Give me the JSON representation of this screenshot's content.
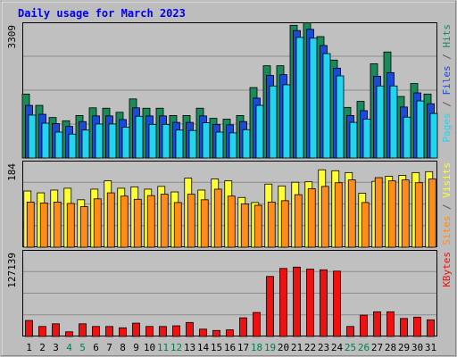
{
  "chart_data": {
    "type": "bar",
    "title": "Daily usage for March 2023",
    "categories": [
      "1",
      "2",
      "3",
      "4",
      "5",
      "6",
      "7",
      "8",
      "9",
      "10",
      "11",
      "12",
      "13",
      "14",
      "15",
      "16",
      "17",
      "18",
      "19",
      "20",
      "21",
      "22",
      "23",
      "24",
      "25",
      "26",
      "27",
      "28",
      "29",
      "30",
      "31"
    ],
    "weekend_days": [
      "4",
      "5",
      "11",
      "12",
      "18",
      "19",
      "25",
      "26"
    ],
    "panels": [
      {
        "id": "hits",
        "max_label": "3309",
        "ymax": 3309,
        "series": [
          {
            "name": "Hits",
            "color": "#1a8a5a",
            "values": [
              1580,
              1300,
              1000,
              920,
              1050,
              1240,
              1230,
              1130,
              1460,
              1230,
              1230,
              1050,
              1050,
              1230,
              980,
              960,
              1050,
              1740,
              2280,
              2280,
              3280,
              3340,
              3000,
              2420,
              1250,
              1400,
              2330,
              2620,
              1520,
              1840,
              1580
            ]
          },
          {
            "name": "Files",
            "color": "#1a4ad8",
            "values": [
              1300,
              1080,
              850,
              780,
              900,
              1040,
              1040,
              950,
              1240,
              1040,
              1040,
              880,
              880,
              1040,
              830,
              820,
              900,
              1480,
              2040,
              2060,
              3150,
              3180,
              2780,
              2220,
              1050,
              1170,
              2020,
              2110,
              1260,
              1610,
              1340
            ]
          },
          {
            "name": "Pages",
            "color": "#22d4f0",
            "values": [
              1060,
              860,
              640,
              590,
              690,
              840,
              840,
              760,
              1030,
              830,
              830,
              690,
              680,
              870,
              640,
              620,
              700,
              1300,
              1780,
              1810,
              2980,
              2960,
              2580,
              2030,
              880,
              960,
              1780,
              1780,
              1010,
              1410,
              1100
            ]
          }
        ]
      },
      {
        "id": "visits",
        "max_label": "184",
        "ymax": 184,
        "series": [
          {
            "name": "Visits",
            "color": "#ffff33",
            "values": [
              122,
              118,
              124,
              128,
              103,
              126,
              144,
              128,
              131,
              126,
              132,
              120,
              150,
              124,
              148,
              144,
              108,
              97,
              137,
              133,
              141,
              142,
              168,
              166,
              162,
              117,
              143,
              154,
              156,
              162,
              164
            ]
          },
          {
            "name": "Sites",
            "color": "#ff8c1a",
            "values": [
              98,
              96,
              98,
              95,
              88,
              105,
              118,
              111,
              104,
              112,
              115,
              97,
              115,
              103,
              126,
              111,
              94,
              91,
              98,
              101,
              114,
              127,
              132,
              140,
              146,
              97,
              151,
              144,
              146,
              140,
              148
            ]
          }
        ]
      },
      {
        "id": "kbytes",
        "max_label": "127139",
        "ymax": 127139,
        "series": [
          {
            "name": "KBytes",
            "color": "#ee1111",
            "values": [
              24000,
              15000,
              19000,
              7000,
              19000,
              15000,
              15000,
              13000,
              20000,
              15000,
              15000,
              16000,
              21000,
              11000,
              9000,
              10000,
              28000,
              36000,
              90000,
              102000,
              104000,
              101000,
              100000,
              98000,
              15000,
              32000,
              37000,
              37000,
              27000,
              29000,
              25000
            ]
          }
        ]
      }
    ],
    "side_labels": {
      "hits": [
        {
          "text": "Pages",
          "color": "#22d4f0"
        },
        {
          "text": " / ",
          "color": "#555555"
        },
        {
          "text": "Files",
          "color": "#1a4ad8"
        },
        {
          "text": " / ",
          "color": "#555555"
        },
        {
          "text": "Hits",
          "color": "#1a8a5a"
        }
      ],
      "visits": [
        {
          "text": "Sites",
          "color": "#ff8c1a"
        },
        {
          "text": " / ",
          "color": "#555555"
        },
        {
          "text": "Visits",
          "color": "#ffff33"
        }
      ],
      "kbytes": [
        {
          "text": "KBytes",
          "color": "#ee1111"
        }
      ]
    },
    "colors": {
      "title": "#0000ee",
      "panel_bg": "#c0c0c0",
      "frame": "#bcbcbc",
      "weekday_label": "#000000",
      "weekend_label": "#00804a"
    }
  }
}
